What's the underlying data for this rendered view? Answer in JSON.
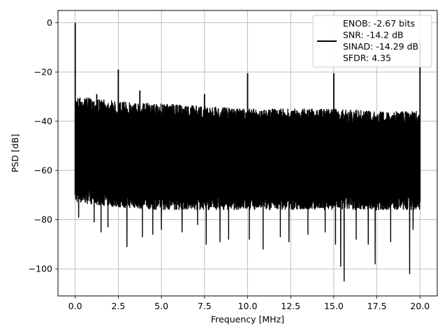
{
  "chart_data": {
    "type": "line",
    "title": "",
    "xlabel": "Frequency [MHz]",
    "ylabel": "PSD [dB]",
    "xlim": [
      -1.0,
      21.0
    ],
    "ylim": [
      -111,
      5
    ],
    "xticks": [
      0.0,
      2.5,
      5.0,
      7.5,
      10.0,
      12.5,
      15.0,
      17.5,
      20.0
    ],
    "xtick_labels": [
      "0.0",
      "2.5",
      "5.0",
      "7.5",
      "10.0",
      "12.5",
      "15.0",
      "17.5",
      "20.0"
    ],
    "yticks": [
      0,
      -20,
      -40,
      -60,
      -80,
      -100
    ],
    "ytick_labels": [
      "0",
      "−20",
      "−40",
      "−60",
      "−80",
      "−100"
    ],
    "grid": true,
    "legend": {
      "placement": "top-right",
      "lines": [
        "ENOB: -2.67 bits",
        "SNR: -14.2 dB",
        "SINAD: -14.29 dB",
        "SFDR: 4.35"
      ]
    },
    "series": [
      {
        "color": "#000000",
        "noise_floor": {
          "x": [
            0.05,
            2.5,
            5.0,
            7.5,
            10.0,
            12.5,
            15.0,
            17.5,
            20.0
          ],
          "upper": [
            -30,
            -32,
            -33,
            -34,
            -35,
            -35,
            -35,
            -36,
            -36
          ],
          "lower": [
            -70,
            -72,
            -73,
            -73,
            -73,
            -73,
            -73,
            -73,
            -73
          ]
        },
        "spikes": [
          {
            "x": 0.0,
            "y": 0
          },
          {
            "x": 1.25,
            "y": -29
          },
          {
            "x": 2.5,
            "y": -19
          },
          {
            "x": 3.75,
            "y": -27.5
          },
          {
            "x": 7.5,
            "y": -29
          },
          {
            "x": 10.0,
            "y": -20.5
          },
          {
            "x": 15.0,
            "y": -20.5
          },
          {
            "x": 20.0,
            "y": -7
          }
        ],
        "dips": [
          {
            "x": 0.2,
            "y": -79
          },
          {
            "x": 1.1,
            "y": -81
          },
          {
            "x": 1.5,
            "y": -85
          },
          {
            "x": 1.9,
            "y": -83
          },
          {
            "x": 3.0,
            "y": -91
          },
          {
            "x": 3.9,
            "y": -87
          },
          {
            "x": 4.5,
            "y": -86
          },
          {
            "x": 5.0,
            "y": -84
          },
          {
            "x": 6.2,
            "y": -85
          },
          {
            "x": 7.1,
            "y": -82
          },
          {
            "x": 7.6,
            "y": -90
          },
          {
            "x": 8.4,
            "y": -89
          },
          {
            "x": 8.9,
            "y": -88
          },
          {
            "x": 10.1,
            "y": -88
          },
          {
            "x": 10.9,
            "y": -92
          },
          {
            "x": 11.9,
            "y": -87
          },
          {
            "x": 12.4,
            "y": -89
          },
          {
            "x": 13.5,
            "y": -86
          },
          {
            "x": 14.5,
            "y": -85
          },
          {
            "x": 15.1,
            "y": -90
          },
          {
            "x": 15.4,
            "y": -99
          },
          {
            "x": 15.6,
            "y": -105
          },
          {
            "x": 16.3,
            "y": -88
          },
          {
            "x": 17.0,
            "y": -90
          },
          {
            "x": 17.4,
            "y": -98
          },
          {
            "x": 18.3,
            "y": -89
          },
          {
            "x": 19.4,
            "y": -102
          },
          {
            "x": 19.6,
            "y": -84
          }
        ]
      }
    ]
  }
}
